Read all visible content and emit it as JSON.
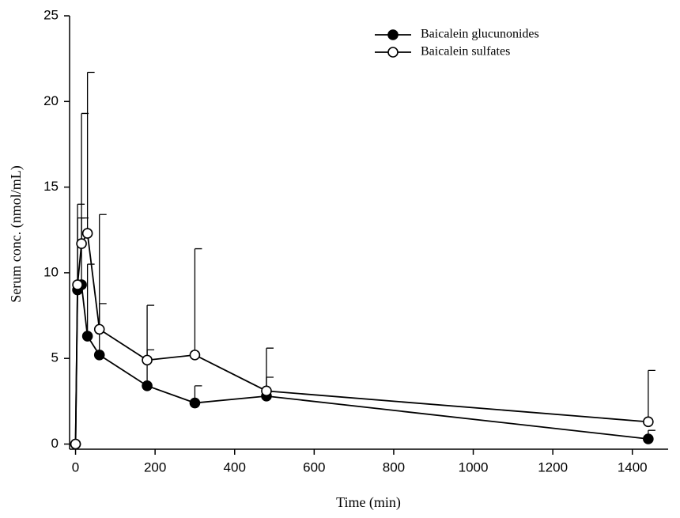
{
  "chart_data": {
    "type": "line",
    "x_label": "Time (min)",
    "y_label": "Serum conc. (nmol/mL)",
    "x": [
      0,
      5,
      15,
      30,
      60,
      180,
      300,
      480,
      1440
    ],
    "series": [
      {
        "name": "Baicalein glucunonides",
        "color": "#000000",
        "marker": "filled",
        "values": [
          0,
          9.0,
          9.3,
          6.3,
          5.2,
          3.4,
          2.4,
          2.8,
          0.3
        ],
        "errors": [
          0,
          5.0,
          3.9,
          4.2,
          3.0,
          2.1,
          1.0,
          1.1,
          0.5
        ]
      },
      {
        "name": "Baicalein sulfates",
        "color": "#000000",
        "marker": "open",
        "values": [
          0,
          9.3,
          11.7,
          12.3,
          6.7,
          4.9,
          5.2,
          3.1,
          1.3
        ],
        "errors": [
          0,
          3.9,
          7.6,
          9.4,
          6.7,
          3.2,
          6.2,
          2.5,
          3.0
        ]
      }
    ],
    "xlim": [
      -15,
      1490
    ],
    "ylim": [
      -0.3,
      25
    ],
    "xticks": [
      0,
      200,
      400,
      600,
      800,
      1000,
      1200,
      1400
    ],
    "yticks": [
      0,
      5,
      10,
      15,
      20,
      25
    ],
    "legend": "top-right"
  }
}
